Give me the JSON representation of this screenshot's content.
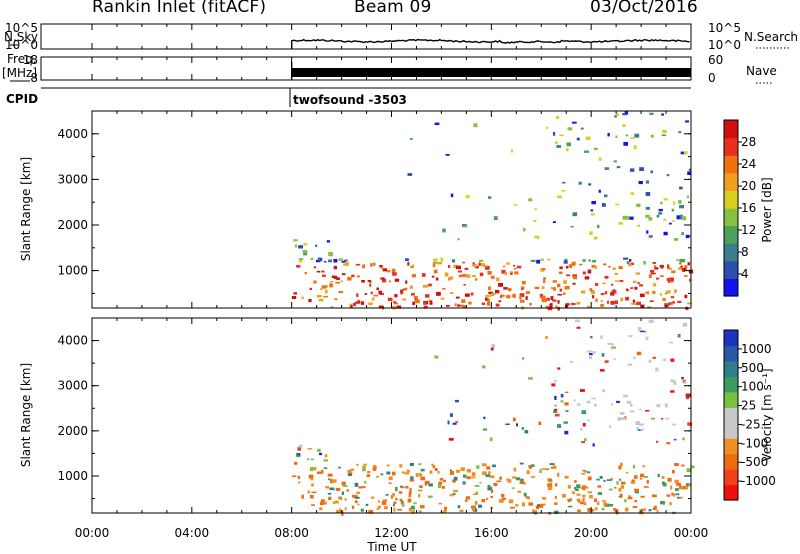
{
  "header": {
    "station": "Rankin Inlet (fitACF)",
    "beam": "Beam 09",
    "date": "03/Oct/2016"
  },
  "labels": {
    "nsky": "N.Sky",
    "nsearch": "N.Search",
    "freq": "Freq.",
    "mhz": "[MHz]",
    "nave": "Nave",
    "cpid": "CPID",
    "program": "twofsound -3503"
  },
  "colors": {
    "power_scale": [
      "#1313ee",
      "#2c4fb0",
      "#3a7e8c",
      "#4aa05e",
      "#88c040",
      "#d8d020",
      "#f0a020",
      "#f07010",
      "#e83020",
      "#d01010"
    ],
    "velocity_scale": [
      "#ee1010",
      "#f04020",
      "#f06a10",
      "#f09020",
      "#c8c8c8",
      "#c8c8c8",
      "#78c040",
      "#3a9c60",
      "#2e7e8c",
      "#2a58a8",
      "#1a34c0"
    ]
  },
  "chart_data": [
    {
      "type": "line",
      "name": "noise",
      "ylabel_left": "N.Sky",
      "ylabel_right": "N.Search",
      "left_ticks": [
        "10^5",
        "10^0"
      ],
      "right_ticks": [
        "10^5",
        "10^0"
      ],
      "xlim": [
        0,
        24
      ],
      "data_start_hour": 8
    },
    {
      "type": "line",
      "name": "frequency",
      "ylabel_left": "Freq. [MHz]",
      "ylabel_right": "Nave",
      "left_ticks": [
        "18",
        "8"
      ],
      "right_ticks": [
        "60",
        "0"
      ],
      "xlim": [
        0,
        24
      ],
      "data_start_hour": 8
    },
    {
      "type": "heatmap",
      "title": "Power",
      "ylabel": "Slant Range [km]",
      "yticks": [
        1000,
        2000,
        3000,
        4000
      ],
      "ylim": [
        180,
        4500
      ],
      "xlim": [
        0,
        24
      ],
      "colorbar_label": "Power [dB]",
      "colorbar_ticks": [
        "28",
        "24",
        "20",
        "16",
        "12",
        "8",
        "4"
      ]
    },
    {
      "type": "heatmap",
      "title": "Velocity",
      "ylabel": "Slant Range [km]",
      "yticks": [
        1000,
        2000,
        3000,
        4000
      ],
      "ylim": [
        180,
        4500
      ],
      "xlim": [
        0,
        24
      ],
      "xlabel": "Time UT",
      "xticks": [
        "00:00",
        "04:00",
        "08:00",
        "12:00",
        "16:00",
        "20:00",
        "00:00"
      ],
      "colorbar_label": "Velocity [m s⁻¹]",
      "colorbar_ticks": [
        "1000",
        "500",
        "100",
        "25",
        "-25",
        "-100",
        "-500",
        "-1000"
      ]
    }
  ]
}
